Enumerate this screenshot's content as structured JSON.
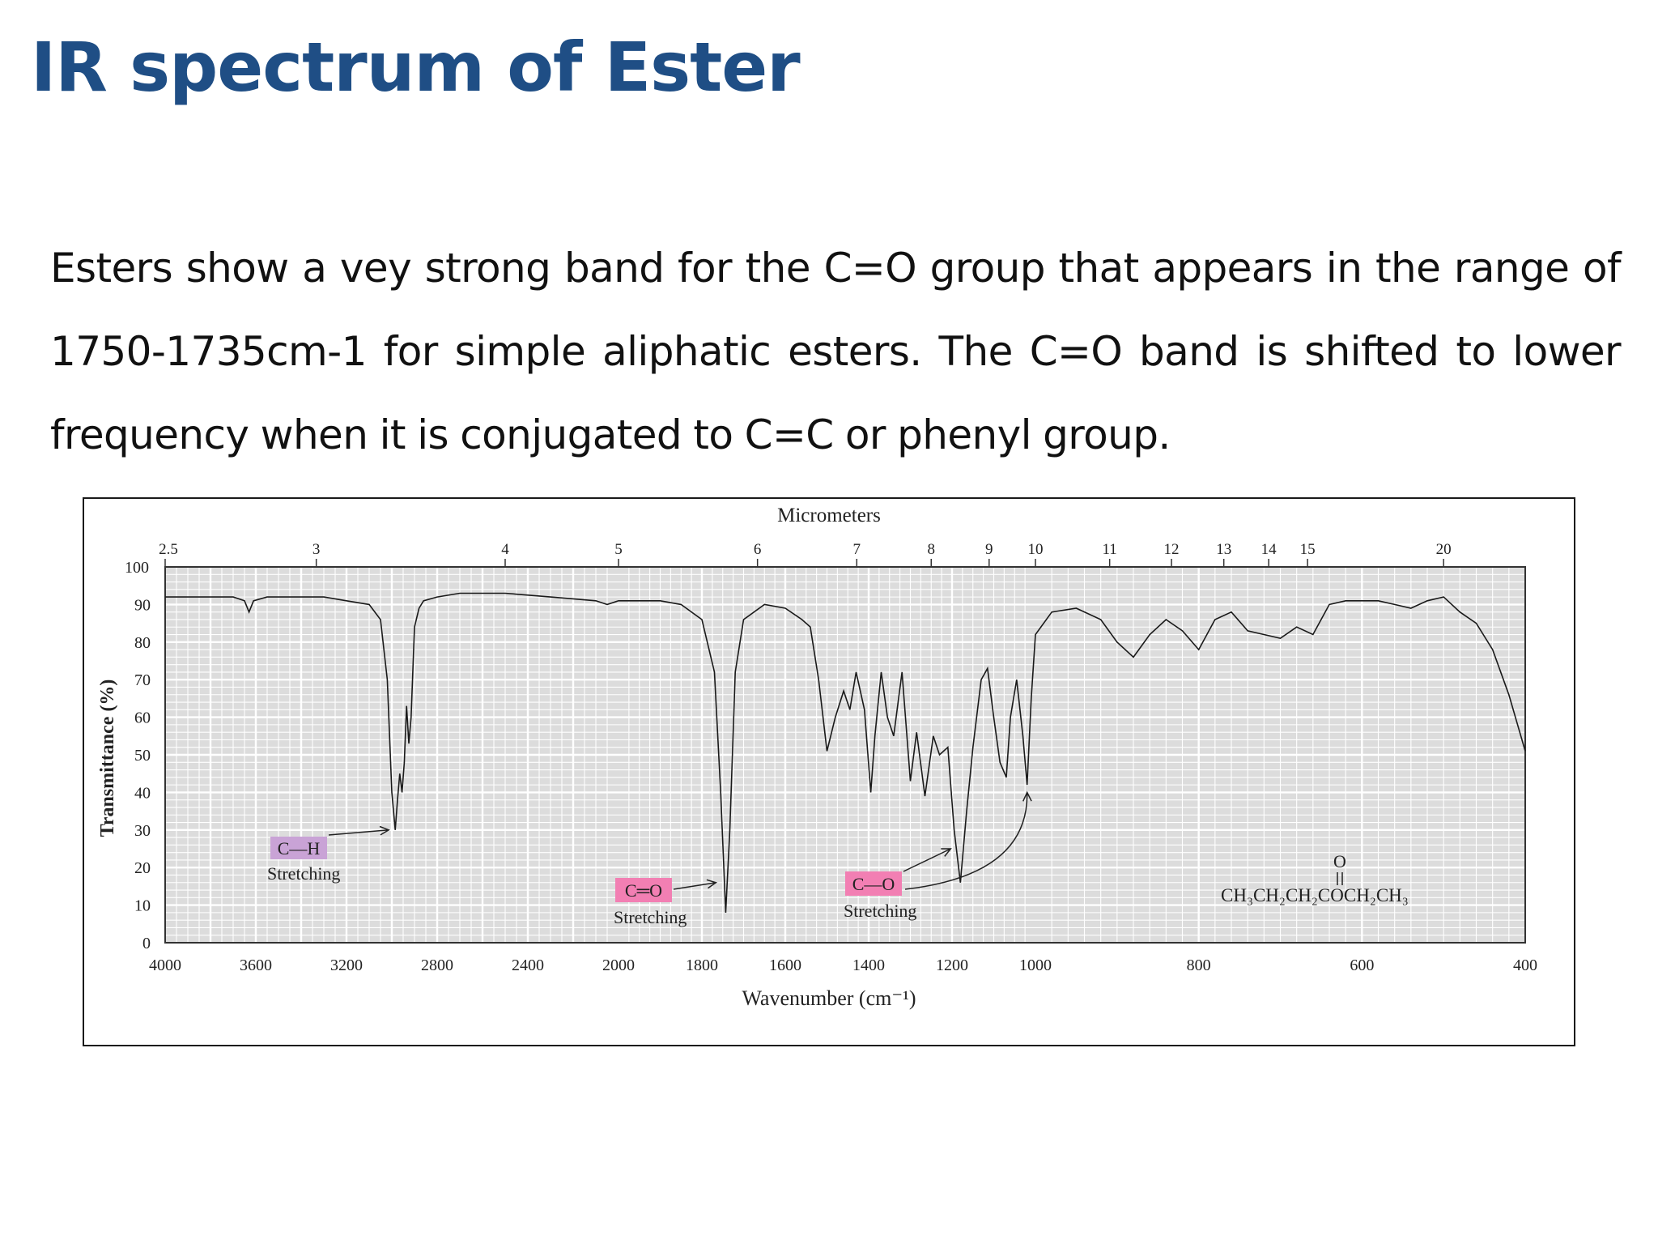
{
  "slide": {
    "title": "IR spectrum of Ester",
    "body": "Esters show a vey strong band for the C=O group that appears in the range of 1750-1735cm-1 for simple aliphatic esters. The C=O band is shifted to lower frequency when it is conjugated to C=C or phenyl group."
  },
  "chart_data": {
    "type": "line",
    "title": "",
    "top_axis_label": "Micrometers",
    "xlabel": "Wavenumber (cm⁻¹)",
    "ylabel": "Transmittance (%)",
    "ylim": [
      0,
      100
    ],
    "x_ticks": [
      4000,
      3600,
      3200,
      2800,
      2400,
      2000,
      1800,
      1600,
      1400,
      1200,
      1000,
      800,
      600,
      400
    ],
    "y_ticks": [
      0,
      10,
      20,
      30,
      40,
      50,
      60,
      70,
      80,
      90,
      100
    ],
    "micrometer_ticks": [
      {
        "label": "2.5",
        "um": 2.5
      },
      {
        "label": "3",
        "um": 3
      },
      {
        "label": "4",
        "um": 4
      },
      {
        "label": "5",
        "um": 5
      },
      {
        "label": "6",
        "um": 6
      },
      {
        "label": "7",
        "um": 7
      },
      {
        "label": "8",
        "um": 8
      },
      {
        "label": "9",
        "um": 9
      },
      {
        "label": "10",
        "um": 10
      },
      {
        "label": "11",
        "um": 11
      },
      {
        "label": "12",
        "um": 12
      },
      {
        "label": "13",
        "um": 13
      },
      {
        "label": "14",
        "um": 14
      },
      {
        "label": "15",
        "um": 15
      },
      {
        "label": "20",
        "um": 20
      }
    ],
    "grid": true,
    "colors": {
      "line": "#1a1a1a",
      "plot_bg": "#dcdcdc",
      "grid": "#ffffff",
      "ch_label_bg": "#c9a3d6",
      "co_label_bg": "#f27fb3"
    },
    "series": [
      {
        "points": [
          [
            4000,
            92
          ],
          [
            3900,
            92
          ],
          [
            3800,
            92
          ],
          [
            3700,
            92
          ],
          [
            3650,
            91
          ],
          [
            3630,
            88
          ],
          [
            3610,
            91
          ],
          [
            3550,
            92
          ],
          [
            3450,
            92
          ],
          [
            3300,
            92
          ],
          [
            3200,
            91
          ],
          [
            3100,
            90
          ],
          [
            3050,
            86
          ],
          [
            3020,
            70
          ],
          [
            3000,
            40
          ],
          [
            2985,
            30
          ],
          [
            2975,
            38
          ],
          [
            2965,
            45
          ],
          [
            2955,
            40
          ],
          [
            2945,
            48
          ],
          [
            2935,
            63
          ],
          [
            2925,
            53
          ],
          [
            2915,
            60
          ],
          [
            2900,
            84
          ],
          [
            2880,
            89
          ],
          [
            2860,
            91
          ],
          [
            2800,
            92
          ],
          [
            2700,
            93
          ],
          [
            2500,
            93
          ],
          [
            2300,
            92
          ],
          [
            2100,
            91
          ],
          [
            2050,
            90
          ],
          [
            2000,
            91
          ],
          [
            1900,
            91
          ],
          [
            1850,
            90
          ],
          [
            1800,
            86
          ],
          [
            1770,
            72
          ],
          [
            1755,
            40
          ],
          [
            1743,
            8
          ],
          [
            1733,
            30
          ],
          [
            1720,
            72
          ],
          [
            1700,
            86
          ],
          [
            1650,
            90
          ],
          [
            1600,
            89
          ],
          [
            1560,
            86
          ],
          [
            1540,
            84
          ],
          [
            1520,
            70
          ],
          [
            1500,
            51
          ],
          [
            1480,
            60
          ],
          [
            1460,
            67
          ],
          [
            1445,
            62
          ],
          [
            1430,
            72
          ],
          [
            1410,
            62
          ],
          [
            1395,
            40
          ],
          [
            1385,
            55
          ],
          [
            1370,
            72
          ],
          [
            1355,
            60
          ],
          [
            1340,
            55
          ],
          [
            1320,
            72
          ],
          [
            1300,
            43
          ],
          [
            1285,
            56
          ],
          [
            1265,
            39
          ],
          [
            1245,
            55
          ],
          [
            1230,
            50
          ],
          [
            1210,
            52
          ],
          [
            1195,
            30
          ],
          [
            1180,
            16
          ],
          [
            1165,
            35
          ],
          [
            1150,
            52
          ],
          [
            1130,
            70
          ],
          [
            1115,
            73
          ],
          [
            1100,
            60
          ],
          [
            1085,
            48
          ],
          [
            1070,
            44
          ],
          [
            1060,
            60
          ],
          [
            1045,
            70
          ],
          [
            1030,
            55
          ],
          [
            1020,
            42
          ],
          [
            1010,
            65
          ],
          [
            1000,
            82
          ],
          [
            980,
            88
          ],
          [
            950,
            89
          ],
          [
            920,
            86
          ],
          [
            900,
            80
          ],
          [
            880,
            76
          ],
          [
            860,
            82
          ],
          [
            840,
            86
          ],
          [
            820,
            83
          ],
          [
            800,
            78
          ],
          [
            780,
            86
          ],
          [
            760,
            88
          ],
          [
            740,
            83
          ],
          [
            720,
            82
          ],
          [
            700,
            81
          ],
          [
            680,
            84
          ],
          [
            660,
            82
          ],
          [
            640,
            90
          ],
          [
            620,
            91
          ],
          [
            600,
            91
          ],
          [
            580,
            91
          ],
          [
            560,
            90
          ],
          [
            540,
            89
          ],
          [
            520,
            91
          ],
          [
            500,
            92
          ],
          [
            480,
            88
          ],
          [
            460,
            85
          ],
          [
            440,
            78
          ],
          [
            420,
            66
          ],
          [
            400,
            51
          ]
        ]
      }
    ],
    "annotations": [
      {
        "label": "C—H",
        "sublabel": "Stretching",
        "x": 2985
      },
      {
        "label": "C═O",
        "sublabel": "Stretching",
        "x": 1743
      },
      {
        "label": "C—O",
        "sublabel": "Stretching",
        "x": 1180
      }
    ],
    "structure": {
      "top": "O",
      "formula": "CH₃CH₂CH₂COCH₂CH₃"
    }
  }
}
